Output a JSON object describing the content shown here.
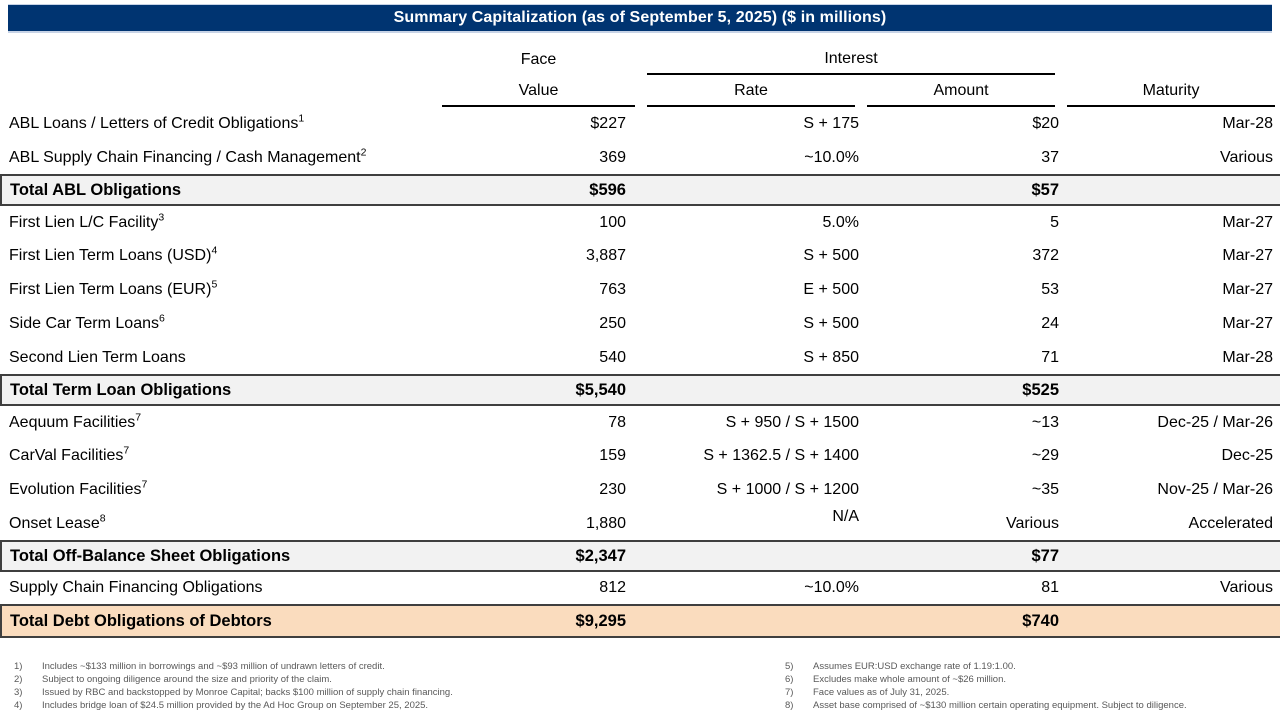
{
  "title": "Summary Capitalization (as of September 5, 2025) ($ in millions)",
  "colors": {
    "header_bar": "#003471",
    "subtotal_bg": "#f2f2f2",
    "grand_total_bg": "#fadcbe",
    "box_border": "#3f3f3f"
  },
  "table": {
    "header": {
      "face": "Face",
      "value": "Value",
      "interest": "Interest",
      "rate": "Rate",
      "amount": "Amount",
      "maturity": "Maturity"
    },
    "rows": [
      {
        "type": "data",
        "label": "ABL Loans / Letters of Credit Obligations",
        "sup": "1",
        "face": "$227",
        "rate": "S + 175",
        "amount": "$20",
        "maturity": "Mar-28"
      },
      {
        "type": "data",
        "label": "ABL Supply Chain Financing / Cash Management",
        "sup": "2",
        "face": "369",
        "rate": "~10.0%",
        "amount": "37",
        "maturity": "Various"
      },
      {
        "type": "subtotal",
        "label": "Total ABL Obligations",
        "face": "$596",
        "rate": "",
        "amount": "$57",
        "maturity": ""
      },
      {
        "type": "data",
        "label": "First Lien L/C Facility",
        "sup": "3",
        "face": "100",
        "rate": "5.0%",
        "amount": "5",
        "maturity": "Mar-27"
      },
      {
        "type": "data",
        "label": "First Lien Term Loans (USD)",
        "sup": "4",
        "face": "3,887",
        "rate": "S + 500",
        "amount": "372",
        "maturity": "Mar-27"
      },
      {
        "type": "data",
        "label": "First Lien Term Loans (EUR)",
        "sup": "5",
        "face": "763",
        "rate": "E + 500",
        "amount": "53",
        "maturity": "Mar-27"
      },
      {
        "type": "data",
        "label": "Side Car Term Loans",
        "sup": "6",
        "face": "250",
        "rate": "S + 500",
        "amount": "24",
        "maturity": "Mar-27"
      },
      {
        "type": "data",
        "label": "Second Lien Term Loans",
        "face": "540",
        "rate": "S + 850",
        "amount": "71",
        "maturity": "Mar-28"
      },
      {
        "type": "subtotal",
        "label": "Total Term Loan Obligations",
        "face": "$5,540",
        "rate": "",
        "amount": "$525",
        "maturity": ""
      },
      {
        "type": "data",
        "label": "Aequum Facilities",
        "sup": "7",
        "face": "78",
        "rate": "S + 950 / S + 1500",
        "amount": "~13",
        "maturity": "Dec-25 / Mar-26"
      },
      {
        "type": "data",
        "label": "CarVal Facilities",
        "sup": "7",
        "face": "159",
        "rate": "S + 1362.5 / S + 1400",
        "amount": "~29",
        "maturity": "Dec-25"
      },
      {
        "type": "data",
        "label": "Evolution Facilities",
        "sup": "7",
        "face": "230",
        "rate": "S + 1000 / S + 1200",
        "amount": "~35",
        "maturity": "Nov-25 / Mar-26"
      },
      {
        "type": "data",
        "label": "Onset Lease",
        "sup": "8",
        "face": "1,880",
        "rate": "N/A",
        "rate_raised": true,
        "amount": "Various",
        "maturity": "Accelerated"
      },
      {
        "type": "subtotal",
        "label": "Total Off-Balance Sheet Obligations",
        "face": "$2,347",
        "rate": "",
        "amount": "$77",
        "maturity": ""
      },
      {
        "type": "data",
        "label": "Supply Chain Financing Obligations",
        "face": "812",
        "rate": "~10.0%",
        "amount": "81",
        "maturity": "Various"
      },
      {
        "type": "grand",
        "label": "Total Debt Obligations of Debtors",
        "face": "$9,295",
        "rate": "",
        "amount": "$740",
        "maturity": ""
      }
    ]
  },
  "footnotes": {
    "left": [
      {
        "num": "1)",
        "text": "Includes ~$133 million in borrowings and ~$93 million of undrawn letters of credit."
      },
      {
        "num": "2)",
        "text": "Subject to ongoing diligence around the size and priority of the claim."
      },
      {
        "num": "3)",
        "text": "Issued by RBC and backstopped by Monroe Capital; backs $100 million of supply chain financing."
      },
      {
        "num": "4)",
        "text": "Includes bridge loan of $24.5 million provided by the Ad Hoc Group on September 25, 2025."
      }
    ],
    "right": [
      {
        "num": "5)",
        "text": "Assumes EUR:USD exchange rate of 1.19:1.00."
      },
      {
        "num": "6)",
        "text": "Excludes make whole amount of ~$26 million."
      },
      {
        "num": "7)",
        "text": "Face values as of July 31, 2025."
      },
      {
        "num": "8)",
        "text": "Asset base comprised of ~$130 million certain operating equipment. Subject to diligence."
      }
    ]
  }
}
